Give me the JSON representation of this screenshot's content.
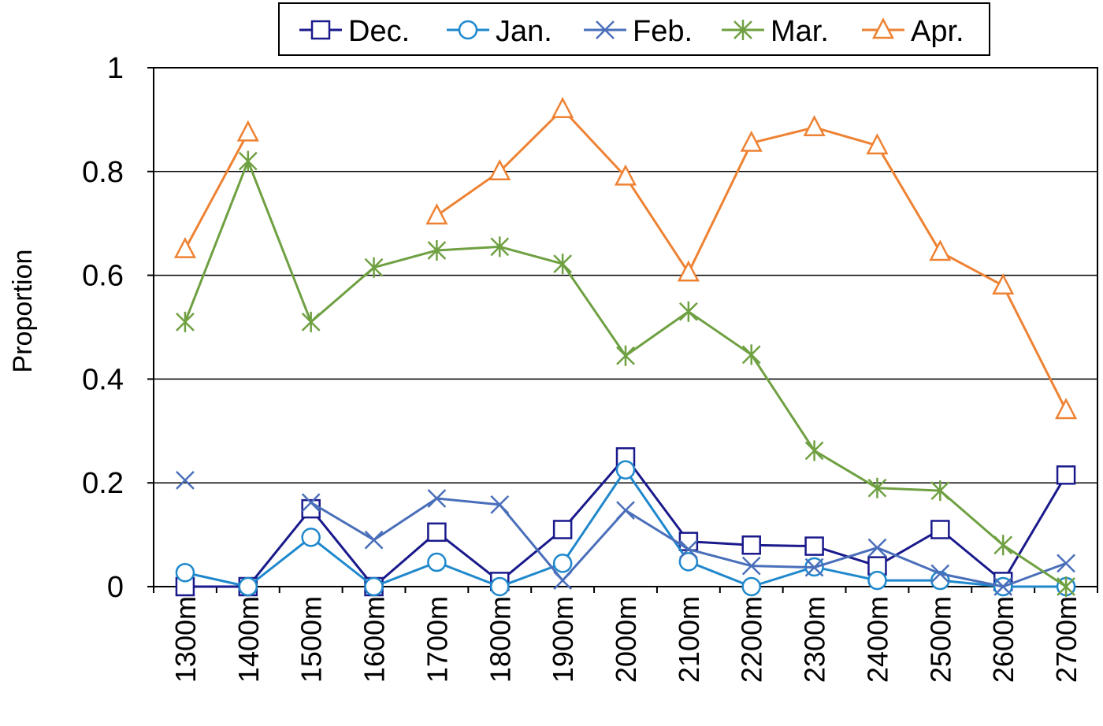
{
  "chart_data": {
    "type": "line",
    "title": "",
    "xlabel": "",
    "ylabel": "Proportion",
    "categories": [
      "1300m",
      "1400m",
      "1500m",
      "1600m",
      "1700m",
      "1800m",
      "1900m",
      "2000m",
      "2100m",
      "2200m",
      "2300m",
      "2400m",
      "2500m",
      "2600m",
      "2700m"
    ],
    "ylim": [
      0,
      1
    ],
    "yticks": [
      "0",
      "0.2",
      "0.4",
      "0.6",
      "0.8",
      "1"
    ],
    "grid": "horizontal",
    "legend_position": "top",
    "series": [
      {
        "name": "Dec.",
        "color": "#1a1a8c",
        "marker": "square",
        "values": [
          0.0,
          0.0,
          0.15,
          0.0,
          0.105,
          0.01,
          0.11,
          0.25,
          0.087,
          0.08,
          0.078,
          0.04,
          0.11,
          0.01,
          0.215
        ]
      },
      {
        "name": "Jan.",
        "color": "#1f88cc",
        "marker": "circle",
        "values": [
          0.027,
          0.0,
          0.095,
          0.0,
          0.047,
          0.0,
          0.045,
          0.225,
          0.048,
          0.0,
          0.038,
          0.012,
          0.012,
          0.0,
          0.0
        ]
      },
      {
        "name": "Feb.",
        "color": "#4a6fba",
        "marker": "x",
        "values": [
          0.205,
          null,
          0.162,
          0.09,
          0.17,
          0.158,
          0.012,
          0.147,
          0.072,
          0.04,
          0.037,
          0.075,
          0.025,
          0.0,
          0.045
        ]
      },
      {
        "name": "Mar.",
        "color": "#6fa042",
        "marker": "asterisk",
        "values": [
          0.51,
          0.82,
          0.51,
          0.615,
          0.648,
          0.655,
          0.622,
          0.445,
          0.53,
          0.447,
          0.262,
          0.19,
          0.185,
          0.08,
          0.0
        ]
      },
      {
        "name": "Apr.",
        "color": "#ee8233",
        "marker": "triangle",
        "values": [
          0.65,
          0.875,
          null,
          null,
          0.715,
          0.8,
          0.92,
          0.79,
          0.605,
          0.855,
          0.885,
          0.85,
          0.645,
          0.58,
          0.34
        ]
      }
    ]
  }
}
